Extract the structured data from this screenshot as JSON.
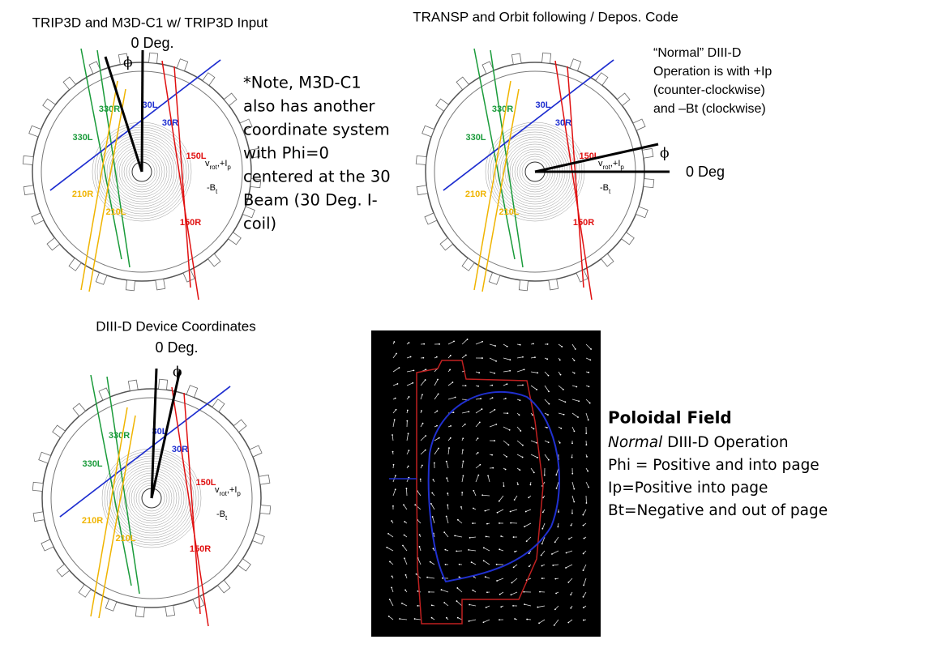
{
  "panels": [
    {
      "title": "TRIP3D and M3D-C1 w/ TRIP3D Input",
      "zero_label": "0 Deg.",
      "phi": "ϕ"
    },
    {
      "title": "TRANSP and Orbit following / Depos. Code",
      "zero_label": "0 Deg",
      "phi": "ϕ"
    },
    {
      "title": "DIII-D Device Coordinates",
      "zero_label": "0 Deg.",
      "phi": "ϕ"
    }
  ],
  "beams": [
    {
      "label": "330R",
      "color": "#1a9b3a"
    },
    {
      "label": "330L",
      "color": "#1a9b3a"
    },
    {
      "label": "30L",
      "color": "#1f2fd0"
    },
    {
      "label": "30R",
      "color": "#1f2fd0"
    },
    {
      "label": "150L",
      "color": "#e01010"
    },
    {
      "label": "150R",
      "color": "#e01010"
    },
    {
      "label": "210R",
      "color": "#f0b400"
    },
    {
      "label": "210L",
      "color": "#f0b400"
    }
  ],
  "rotation_label": [
    "v",
    "rot",
    ",+I",
    "p"
  ],
  "field_label": [
    "-B",
    "t"
  ],
  "note": [
    "*Note, M3D-C1",
    "also has another",
    "coordinate system",
    "with Phi=0",
    "centered at the 30",
    "Beam (30 Deg. I-",
    "coil)"
  ],
  "normal_note": [
    "“Normal” DIII-D",
    "Operation is with +Ip",
    "(counter-clockwise)",
    "and –Bt (clockwise)"
  ],
  "poloidal": {
    "title": "Poloidal Field",
    "line1_italic": "Normal",
    "line1_rest": " DIII-D Operation",
    "lines": [
      "Phi = Positive and into page",
      "Ip=Positive into page",
      "Bt=Negative and out of page"
    ]
  }
}
